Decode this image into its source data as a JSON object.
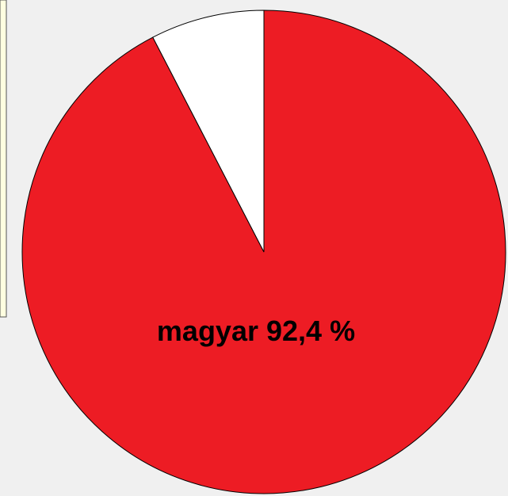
{
  "chart_data": {
    "type": "pie",
    "categories": [
      "magyar",
      null
    ],
    "values": [
      92.4,
      7.6
    ],
    "value_labels": [
      "92,4 %",
      null
    ],
    "colors": [
      "#ed1c24",
      "#ffffff"
    ]
  }
}
